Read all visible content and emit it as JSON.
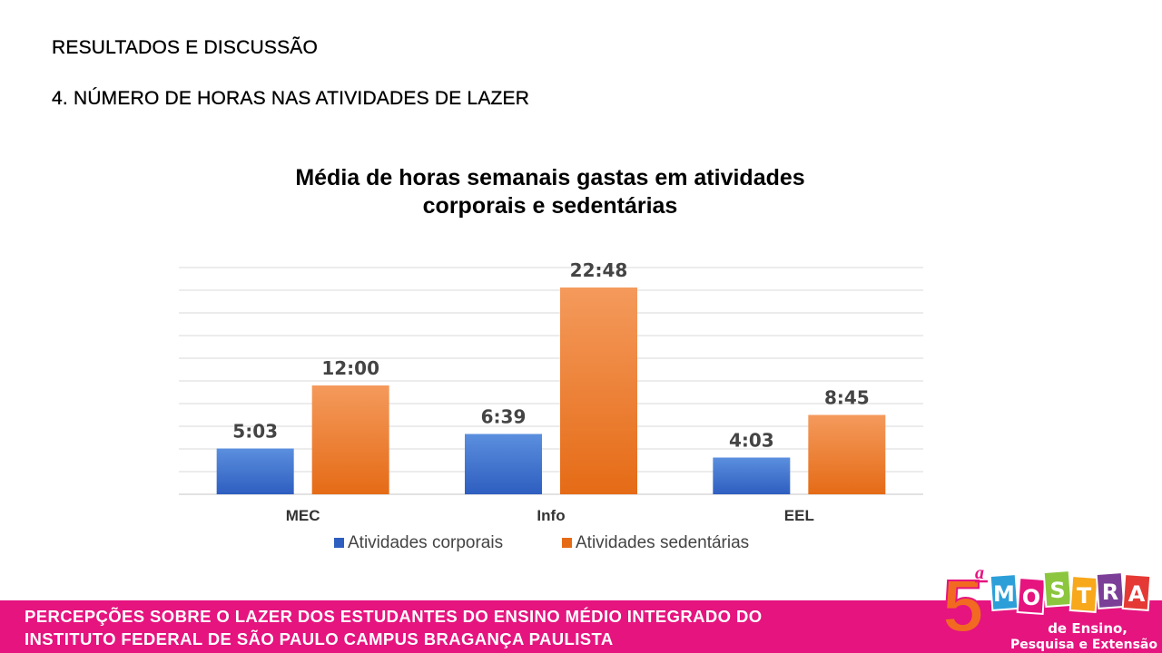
{
  "slide": {
    "section_title": "RESULTADOS E DISCUSSÃO",
    "subsection_title": "4. NÚMERO DE HORAS NAS ATIVIDADES DE LAZER"
  },
  "chart_data": {
    "type": "bar",
    "title_lines": [
      "Média de horas semanais gastas em atividades",
      "corporais e sedentárias"
    ],
    "categories": [
      "MEC",
      "Info",
      "EEL"
    ],
    "series": [
      {
        "name": "Atividades corporais",
        "values": [
          5.05,
          6.65,
          4.05
        ],
        "labels": [
          "5:03",
          "6:39",
          "4:03"
        ],
        "color_top": "#5b8fde",
        "color_bottom": "#2e5ec0"
      },
      {
        "name": "Atividades sedentárias",
        "values": [
          12.0,
          22.8,
          8.75
        ],
        "labels": [
          "12:00",
          "22:48",
          "8:45"
        ],
        "color_top": "#f49a5c",
        "color_bottom": "#e56b16"
      }
    ],
    "ylim": [
      0,
      25
    ],
    "gridlines": true,
    "legend_position": "bottom"
  },
  "footer": {
    "line1": "PERCEPÇÕES SOBRE O LAZER DOS ESTUDANTES DO ENSINO MÉDIO INTEGRADO DO",
    "line2": "INSTITUTO FEDERAL DE SÃO PAULO CAMPUS BRAGANÇA PAULISTA",
    "color": "#e5147f"
  },
  "logo": {
    "number": "5",
    "ordinal": "a",
    "letters": [
      "M",
      "O",
      "S",
      "T",
      "R",
      "A"
    ],
    "letter_colors": [
      "#2c9fd9",
      "#e5147f",
      "#8cc63f",
      "#f7a81b",
      "#7b3f98",
      "#e53935"
    ],
    "subtitle1": "de Ensino,",
    "subtitle2": "Pesquisa e Extensão"
  }
}
